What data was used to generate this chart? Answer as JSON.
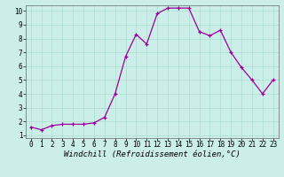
{
  "x": [
    0,
    1,
    2,
    3,
    4,
    5,
    6,
    7,
    8,
    9,
    10,
    11,
    12,
    13,
    14,
    15,
    16,
    17,
    18,
    19,
    20,
    21,
    22,
    23
  ],
  "y": [
    1.6,
    1.4,
    1.7,
    1.8,
    1.8,
    1.8,
    1.9,
    2.3,
    4.0,
    6.7,
    8.3,
    7.6,
    9.8,
    10.2,
    10.2,
    10.2,
    8.5,
    8.2,
    8.6,
    7.0,
    5.9,
    5.0,
    4.0,
    5.0
  ],
  "line_color": "#990099",
  "marker": "+",
  "marker_size": 3,
  "xlabel": "Windchill (Refroidissement éolien,°C)",
  "xlim": [
    -0.5,
    23.5
  ],
  "ylim": [
    0.8,
    10.4
  ],
  "yticks": [
    1,
    2,
    3,
    4,
    5,
    6,
    7,
    8,
    9,
    10
  ],
  "xticks": [
    0,
    1,
    2,
    3,
    4,
    5,
    6,
    7,
    8,
    9,
    10,
    11,
    12,
    13,
    14,
    15,
    16,
    17,
    18,
    19,
    20,
    21,
    22,
    23
  ],
  "grid_color": "#aaddcc",
  "bg_color": "#cceee8",
  "xlabel_fontsize": 6.5,
  "tick_fontsize": 5.5,
  "linewidth": 0.9,
  "markeredgewidth": 0.9
}
